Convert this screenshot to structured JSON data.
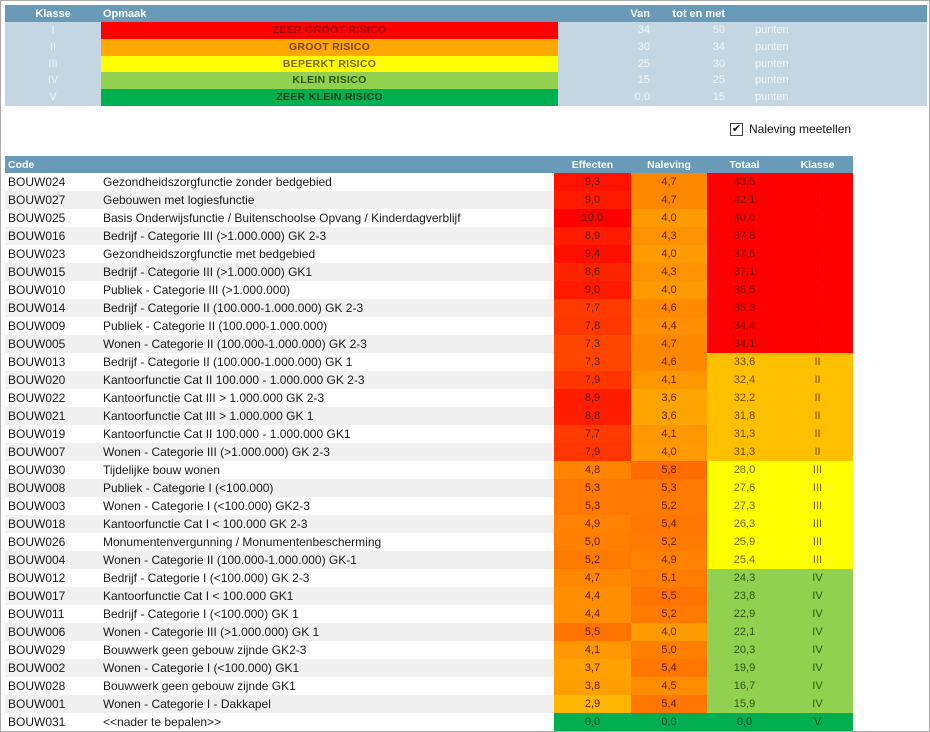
{
  "legend": {
    "headers": {
      "klasse": "Klasse",
      "opmaak": "Opmaak",
      "van": "Van",
      "tot_en_met": "tot en met"
    },
    "unit_label": "punten",
    "rows": [
      {
        "klasse": "I",
        "label": "ZEER GROOT RISICO",
        "van": "34",
        "tot": "50",
        "bg": "#FF0000",
        "text": "#9C0006"
      },
      {
        "klasse": "II",
        "label": "GROOT RISICO",
        "van": "30",
        "tot": "34",
        "bg": "#FFA800",
        "text": "#7A4100"
      },
      {
        "klasse": "III",
        "label": "BEPERKT RISICO",
        "van": "25",
        "tot": "30",
        "bg": "#FFFF00",
        "text": "#7A6600"
      },
      {
        "klasse": "IV",
        "label": "KLEIN RISICO",
        "van": "15",
        "tot": "25",
        "bg": "#92D050",
        "text": "#2C5313"
      },
      {
        "klasse": "V",
        "label": "ZEER KLEIN RISICO",
        "van": "0,0",
        "tot": "15",
        "bg": "#00B050",
        "text": "#003E19"
      }
    ]
  },
  "checkbox": {
    "label": "Naleving meetellen",
    "checked": true,
    "check_glyph": "✔"
  },
  "table": {
    "headers": {
      "code": "Code",
      "effecten": "Effecten",
      "naleving": "Naleving",
      "totaal": "Totaal",
      "klasse": "Klasse"
    },
    "rows": [
      {
        "code": "BOUW024",
        "omschrijving": "Gezondheidszorgfunctie zonder bedgebied",
        "effecten": "9,3",
        "naleving": "4,7",
        "totaal": "43,5",
        "klasse": "I"
      },
      {
        "code": "BOUW027",
        "omschrijving": "Gebouwen met logiesfunctie",
        "effecten": "9,0",
        "naleving": "4,7",
        "totaal": "42,1",
        "klasse": "I"
      },
      {
        "code": "BOUW025",
        "omschrijving": "Basis Onderwijsfunctie / Buitenschoolse Opvang / Kinderdagverblijf",
        "effecten": "10,0",
        "naleving": "4,0",
        "totaal": "40,0",
        "klasse": "I"
      },
      {
        "code": "BOUW016",
        "omschrijving": "Bedrijf - Categorie III (>1.000.000) GK 2-3",
        "effecten": "8,9",
        "naleving": "4,3",
        "totaal": "37,8",
        "klasse": "I"
      },
      {
        "code": "BOUW023",
        "omschrijving": "Gezondheidszorgfunctie met bedgebied",
        "effecten": "9,4",
        "naleving": "4,0",
        "totaal": "37,6",
        "klasse": "I"
      },
      {
        "code": "BOUW015",
        "omschrijving": "Bedrijf - Categorie III (>1.000.000) GK1",
        "effecten": "8,6",
        "naleving": "4,3",
        "totaal": "37,1",
        "klasse": "I"
      },
      {
        "code": "BOUW010",
        "omschrijving": "Publiek - Categorie III (>1.000.000)",
        "effecten": "9,0",
        "naleving": "4,0",
        "totaal": "35,5",
        "klasse": "I"
      },
      {
        "code": "BOUW014",
        "omschrijving": "Bedrijf - Categorie II (100.000-1.000.000) GK 2-3",
        "effecten": "7,7",
        "naleving": "4,6",
        "totaal": "35,3",
        "klasse": "I"
      },
      {
        "code": "BOUW009",
        "omschrijving": "Publiek - Categorie II (100.000-1.000.000)",
        "effecten": "7,8",
        "naleving": "4,4",
        "totaal": "34,4",
        "klasse": "I"
      },
      {
        "code": "BOUW005",
        "omschrijving": "Wonen - Categorie II (100.000-1.000.000) GK 2-3",
        "effecten": "7,3",
        "naleving": "4,7",
        "totaal": "34,1",
        "klasse": "I"
      },
      {
        "code": "BOUW013",
        "omschrijving": "Bedrijf - Categorie II (100.000-1.000.000) GK 1",
        "effecten": "7,3",
        "naleving": "4,6",
        "totaal": "33,6",
        "klasse": "II"
      },
      {
        "code": "BOUW020",
        "omschrijving": "Kantoorfunctie Cat II 100.000 - 1.000.000 GK 2-3",
        "effecten": "7,9",
        "naleving": "4,1",
        "totaal": "32,4",
        "klasse": "II"
      },
      {
        "code": "BOUW022",
        "omschrijving": "Kantoorfunctie Cat III > 1.000.000 GK 2-3",
        "effecten": "8,9",
        "naleving": "3,6",
        "totaal": "32,2",
        "klasse": "II"
      },
      {
        "code": "BOUW021",
        "omschrijving": "Kantoorfunctie Cat III > 1.000.000 GK 1",
        "effecten": "8,8",
        "naleving": "3,6",
        "totaal": "31,8",
        "klasse": "II"
      },
      {
        "code": "BOUW019",
        "omschrijving": "Kantoorfunctie Cat II 100.000 - 1.000.000 GK1",
        "effecten": "7,7",
        "naleving": "4,1",
        "totaal": "31,3",
        "klasse": "II"
      },
      {
        "code": "BOUW007",
        "omschrijving": "Wonen - Categorie III (>1.000.000) GK 2-3",
        "effecten": "7,9",
        "naleving": "4,0",
        "totaal": "31,3",
        "klasse": "II"
      },
      {
        "code": "BOUW030",
        "omschrijving": "Tijdelijke bouw wonen",
        "effecten": "4,8",
        "naleving": "5,8",
        "totaal": "28,0",
        "klasse": "III"
      },
      {
        "code": "BOUW008",
        "omschrijving": "Publiek - Categorie I (<100.000)",
        "effecten": "5,3",
        "naleving": "5,3",
        "totaal": "27,6",
        "klasse": "III"
      },
      {
        "code": "BOUW003",
        "omschrijving": "Wonen - Categorie I (<100.000) GK2-3",
        "effecten": "5,3",
        "naleving": "5,2",
        "totaal": "27,3",
        "klasse": "III"
      },
      {
        "code": "BOUW018",
        "omschrijving": "Kantoorfunctie Cat I < 100.000 GK 2-3",
        "effecten": "4,9",
        "naleving": "5,4",
        "totaal": "26,3",
        "klasse": "III"
      },
      {
        "code": "BOUW026",
        "omschrijving": "Monumentenvergunning / Monumentenbescherming",
        "effecten": "5,0",
        "naleving": "5,2",
        "totaal": "25,9",
        "klasse": "III"
      },
      {
        "code": "BOUW004",
        "omschrijving": "Wonen - Categorie II (100.000-1.000.000) GK-1",
        "effecten": "5,2",
        "naleving": "4,9",
        "totaal": "25,4",
        "klasse": "III"
      },
      {
        "code": "BOUW012",
        "omschrijving": "Bedrijf - Categorie I (<100.000) GK 2-3",
        "effecten": "4,7",
        "naleving": "5,1",
        "totaal": "24,3",
        "klasse": "IV"
      },
      {
        "code": "BOUW017",
        "omschrijving": "Kantoorfunctie Cat I < 100.000 GK1",
        "effecten": "4,4",
        "naleving": "5,5",
        "totaal": "23,8",
        "klasse": "IV"
      },
      {
        "code": "BOUW011",
        "omschrijving": "Bedrijf - Categorie I (<100.000) GK 1",
        "effecten": "4,4",
        "naleving": "5,2",
        "totaal": "22,9",
        "klasse": "IV"
      },
      {
        "code": "BOUW006",
        "omschrijving": "Wonen - Categorie III (>1.000.000) GK 1",
        "effecten": "5,5",
        "naleving": "4,0",
        "totaal": "22,1",
        "klasse": "IV"
      },
      {
        "code": "BOUW029",
        "omschrijving": "Bouwwerk geen gebouw zijnde GK2-3",
        "effecten": "4,1",
        "naleving": "5,0",
        "totaal": "20,3",
        "klasse": "IV"
      },
      {
        "code": "BOUW002",
        "omschrijving": "Wonen - Categorie I (<100.000) GK1",
        "effecten": "3,7",
        "naleving": "5,4",
        "totaal": "19,9",
        "klasse": "IV"
      },
      {
        "code": "BOUW028",
        "omschrijving": "Bouwwerk geen gebouw zijnde GK1",
        "effecten": "3,8",
        "naleving": "4,5",
        "totaal": "16,7",
        "klasse": "IV"
      },
      {
        "code": "BOUW001",
        "omschrijving": "Wonen - Categorie I - Dakkapel",
        "effecten": "2,9",
        "naleving": "5,4",
        "totaal": "15,9",
        "klasse": "IV"
      },
      {
        "code": "BOUW031",
        "omschrijving": "<<nader te bepalen>>",
        "effecten": "0,0",
        "naleving": "0,0",
        "totaal": "0,0",
        "klasse": "V"
      }
    ]
  },
  "colors": {
    "header_bg": "#699BB8",
    "legend_bg": "#C3D6E1",
    "stripe_bg": "#F0F0F0",
    "gradient_low": "#FFC000",
    "gradient_high": "#FF0000",
    "gradient_text": "#5C1A00",
    "class_colors": {
      "I": {
        "bg": "#FF0000",
        "text": "#7A0C00"
      },
      "II": {
        "bg": "#FFC000",
        "text": "#6E4A00"
      },
      "III": {
        "bg": "#FFFF00",
        "text": "#6E6000"
      },
      "IV": {
        "bg": "#92D050",
        "text": "#2C5313"
      },
      "V": {
        "bg": "#00B050",
        "text": "#00431B"
      }
    }
  }
}
